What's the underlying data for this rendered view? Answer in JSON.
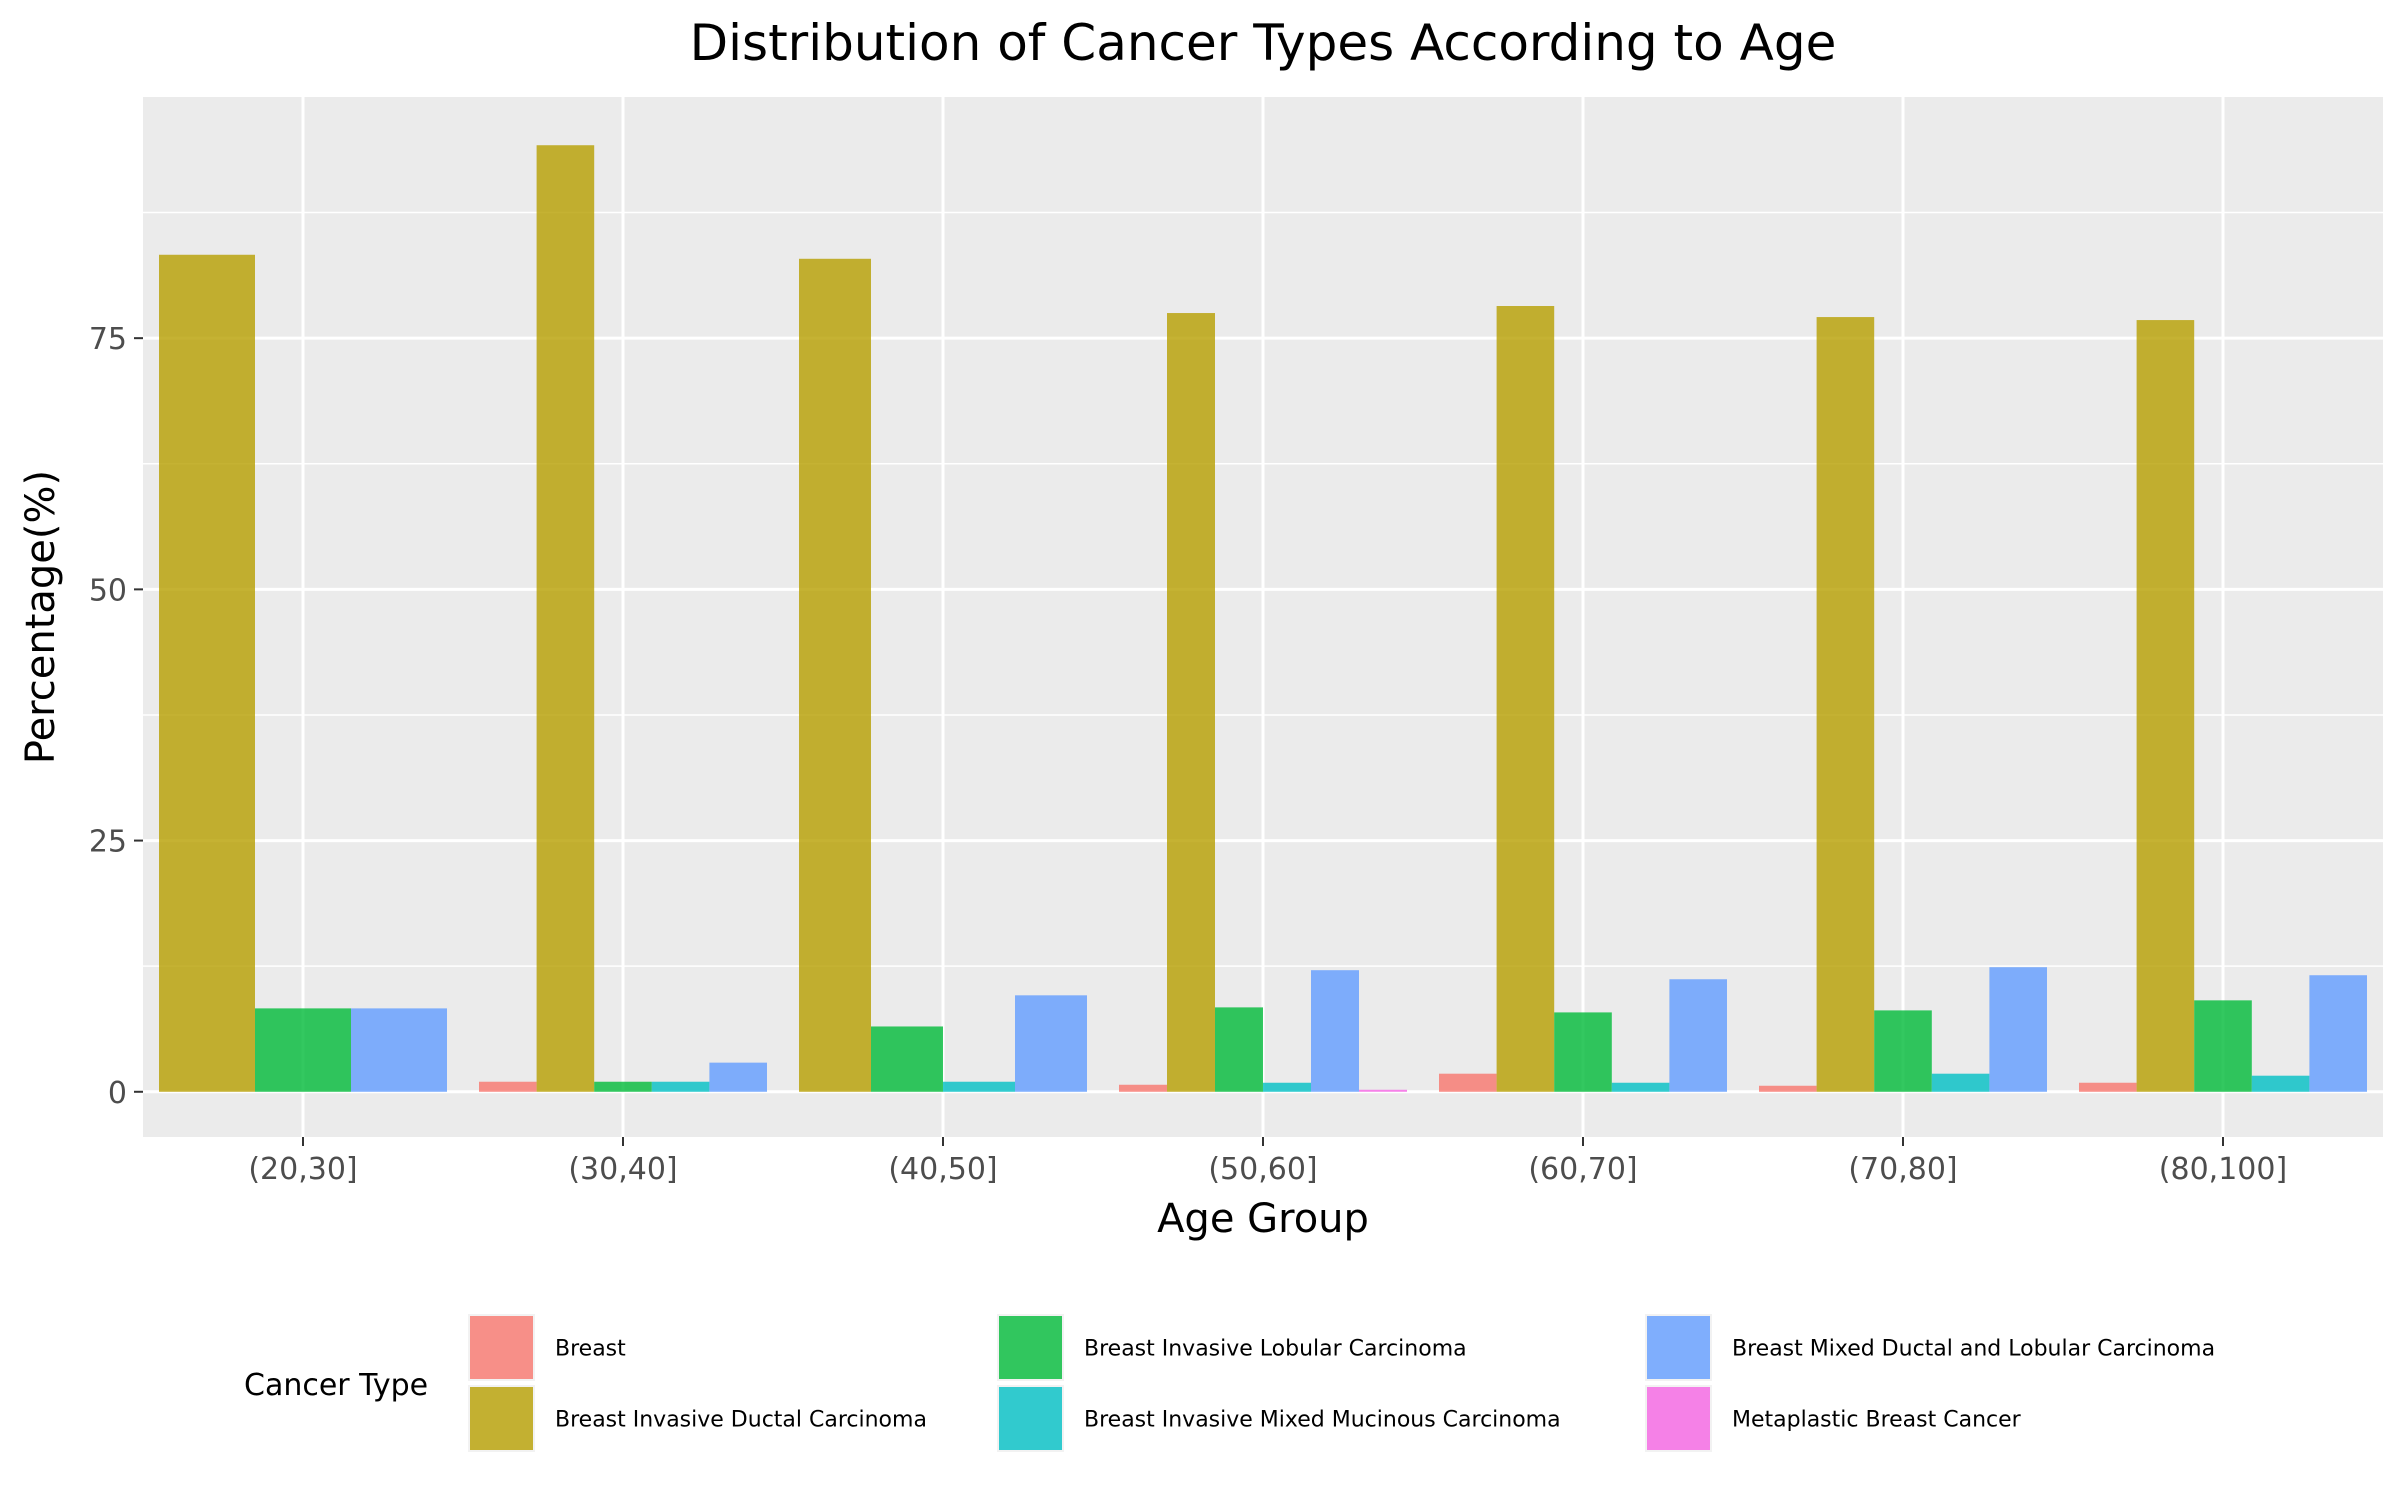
{
  "chart_data": {
    "type": "bar",
    "title": "Distribution of Cancer Types According to Age",
    "xlabel": "Age Group",
    "ylabel": "Percentage(%)",
    "categories": [
      "(20,30]",
      "(30,40]",
      "(40,50]",
      "(50,60]",
      "(60,70]",
      "(70,80]",
      "(80,100]"
    ],
    "ylim": [
      -4.5,
      99
    ],
    "yticks": [
      0,
      25,
      50,
      75
    ],
    "ytick_labels": [
      "0",
      "25",
      "50",
      "75"
    ],
    "grid": true,
    "legend_title": "Cancer Type",
    "legend_position": "bottom",
    "series": [
      {
        "name": "Breast",
        "color": "#F8766D",
        "values": [
          null,
          1.0,
          null,
          0.7,
          1.8,
          0.6,
          0.9
        ]
      },
      {
        "name": "Breast Invasive Ductal Carcinoma",
        "color": "#B79F00",
        "values": [
          83.3,
          94.2,
          82.9,
          77.5,
          78.2,
          77.1,
          76.8
        ]
      },
      {
        "name": "Breast Invasive Lobular Carcinoma",
        "color": "#00BA38",
        "values": [
          8.3,
          1.0,
          6.5,
          8.4,
          7.9,
          8.1,
          9.1
        ]
      },
      {
        "name": "Breast Invasive Mixed Mucinous Carcinoma",
        "color": "#00BFC4",
        "values": [
          null,
          1.0,
          1.0,
          0.9,
          0.9,
          1.8,
          1.6
        ]
      },
      {
        "name": "Breast Mixed Ductal and Lobular Carcinoma",
        "color": "#619CFF",
        "values": [
          8.3,
          2.9,
          9.6,
          12.1,
          11.2,
          12.4,
          11.6
        ]
      },
      {
        "name": "Metaplastic Breast Cancer",
        "color": "#F564E3",
        "values": [
          null,
          null,
          null,
          0.2,
          null,
          null,
          null
        ]
      }
    ]
  }
}
